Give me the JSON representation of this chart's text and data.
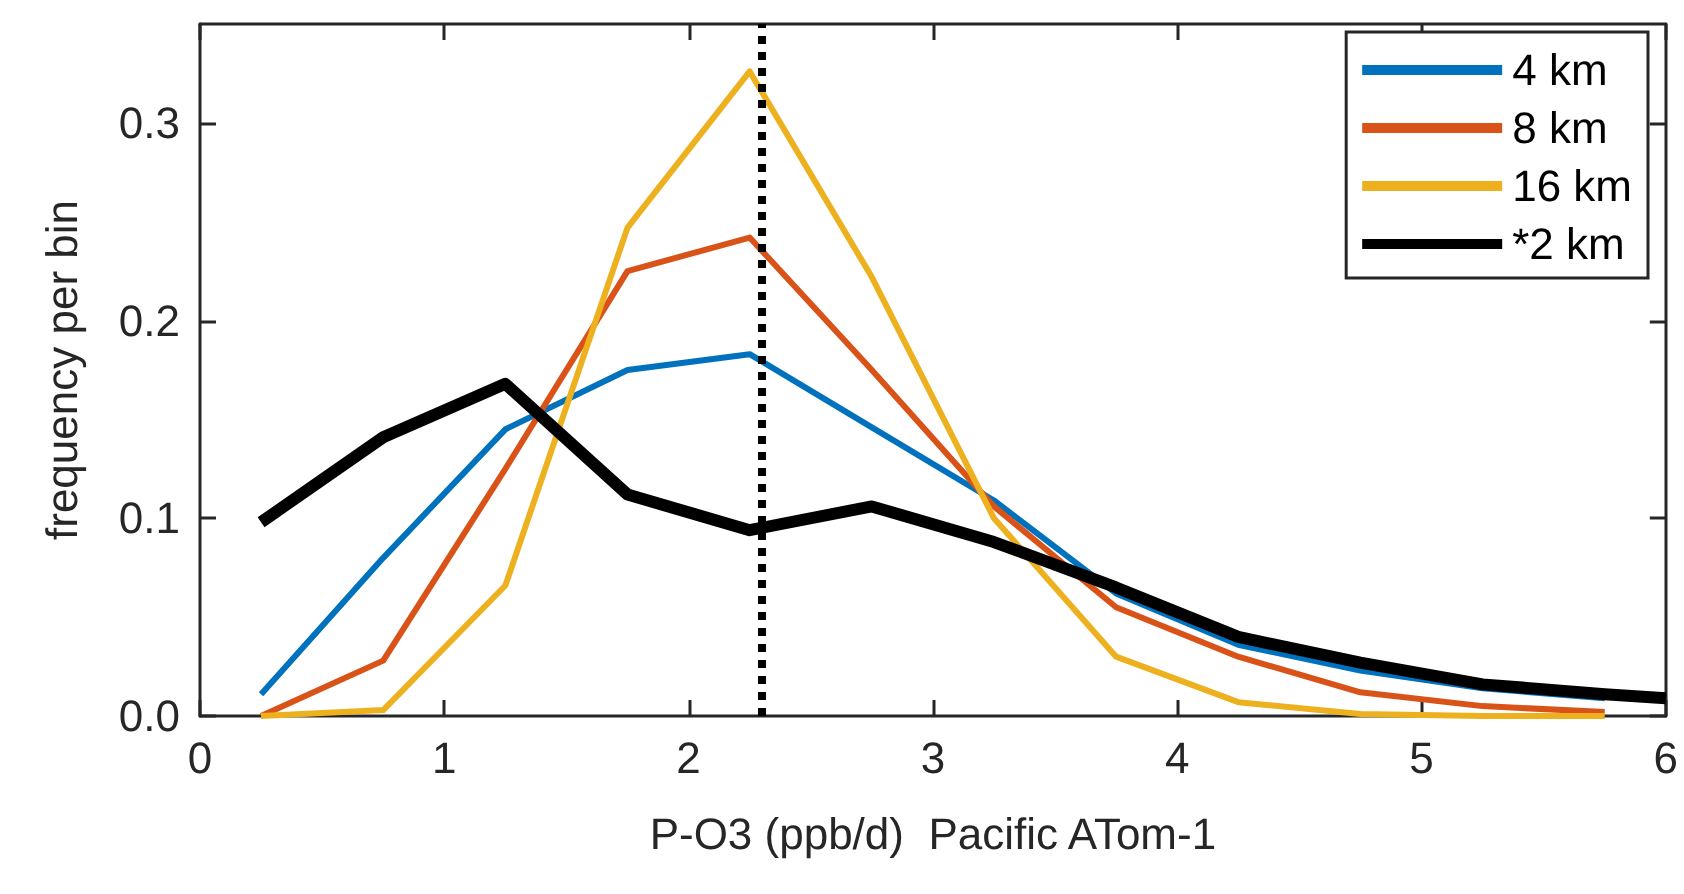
{
  "chart_data": {
    "type": "line",
    "xlabel": "P-O3 (ppb/d)  Pacific ATom-1",
    "ylabel": "frequency per bin",
    "x": [
      0.25,
      0.75,
      1.25,
      1.75,
      2.25,
      2.75,
      3.25,
      3.75,
      4.25,
      4.75,
      5.25,
      5.75
    ],
    "series": [
      {
        "name": "4 km",
        "color": "#0072bd",
        "values": [
          0.011,
          0.08,
          0.145,
          0.175,
          0.183,
          0.146,
          0.109,
          0.062,
          0.036,
          0.023,
          0.014,
          0.009
        ]
      },
      {
        "name": "8 km",
        "color": "#d95319",
        "values": [
          0,
          0.028,
          0.125,
          0.225,
          0.242,
          0.175,
          0.106,
          0.055,
          0.03,
          0.012,
          0.005,
          0.002
        ]
      },
      {
        "name": "16 km",
        "color": "#edb120",
        "values": [
          0,
          0.003,
          0.066,
          0.247,
          0.326,
          0.222,
          0.1,
          0.03,
          0.007,
          0.001,
          0,
          0
        ]
      },
      {
        "name": "*2 km",
        "color": "#000000",
        "x": [
          0.25,
          0.75,
          1.25,
          1.75,
          2.25,
          2.75,
          3.25,
          3.75,
          4.25,
          4.75,
          5.25,
          5.75,
          6
        ],
        "values": [
          0.098,
          0.141,
          0.168,
          0.112,
          0.094,
          0.106,
          0.088,
          0.065,
          0.04,
          0.027,
          0.016,
          0.011,
          0.009
        ]
      }
    ],
    "xlim": [
      0,
      6
    ],
    "xticks": [
      0,
      1,
      2,
      3,
      4,
      5,
      6
    ],
    "ylim": [
      0,
      0.35
    ],
    "yticks": [
      {
        "value": 0,
        "label": "0.0"
      },
      0.1,
      0.2,
      0.3
    ],
    "ref_lines": [
      {
        "axis": "x",
        "value": 2.3,
        "color": "#000000",
        "line_style": "dotted"
      }
    ],
    "grid": false,
    "legend": "top right",
    "marker": "none",
    "line_style": "solid"
  }
}
